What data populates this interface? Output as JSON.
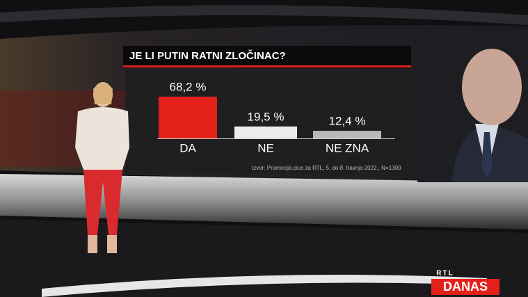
{
  "chart_data": {
    "type": "bar",
    "title": "JE LI PUTIN RATNI ZLOČINAC?",
    "categories": [
      "DA",
      "NE",
      "NE ZNA"
    ],
    "values": [
      68.2,
      19.5,
      12.4
    ],
    "value_labels": [
      "68,2 %",
      "19,5 %",
      "12,4 %"
    ],
    "colors": [
      "#e4201b",
      "#ececec",
      "#b9b9b9"
    ],
    "source": "Izvor: Promocija plus za RTL, 5. do 8. travnja 2022., N=1300"
  },
  "logo": {
    "top": "RTL",
    "bottom": "DANAS"
  }
}
